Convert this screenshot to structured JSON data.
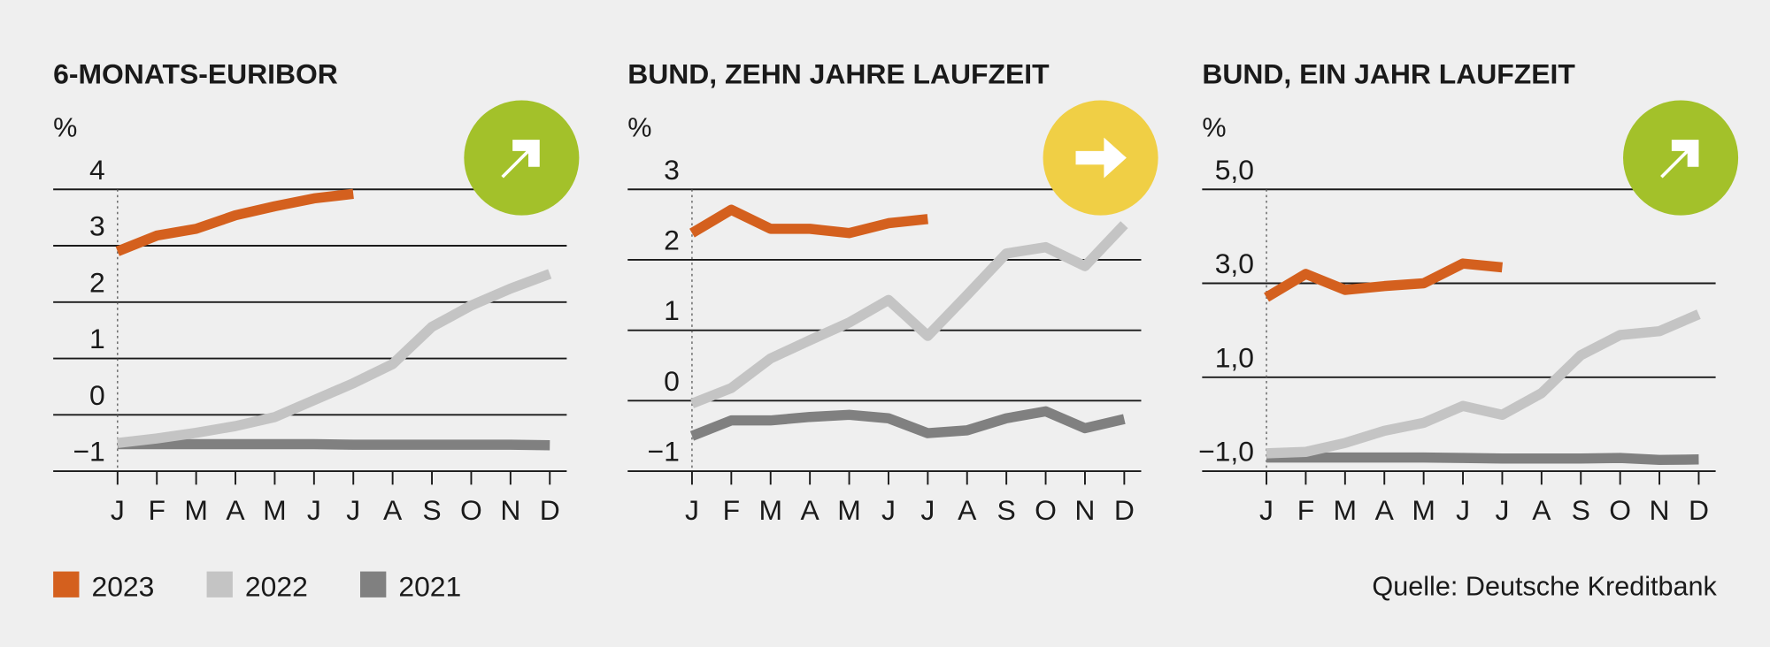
{
  "chart_data": [
    {
      "type": "line",
      "title": "6-MONATS-EURIBOR",
      "ylabel": "%",
      "categories": [
        "J",
        "F",
        "M",
        "A",
        "M",
        "J",
        "J",
        "A",
        "S",
        "O",
        "N",
        "D"
      ],
      "ylim": [
        -1,
        4
      ],
      "yticks": [
        {
          "value": -1,
          "label": "−1"
        },
        0,
        1,
        2,
        3,
        4
      ],
      "series": [
        {
          "name": "2021",
          "color": "#808080",
          "values": [
            -0.52,
            -0.52,
            -0.52,
            -0.52,
            -0.52,
            -0.52,
            -0.53,
            -0.53,
            -0.53,
            -0.53,
            -0.53,
            -0.54
          ]
        },
        {
          "name": "2022",
          "color": "#c4c4c4",
          "values": [
            -0.5,
            -0.42,
            -0.32,
            -0.2,
            -0.04,
            0.26,
            0.56,
            0.9,
            1.56,
            1.94,
            2.24,
            2.5
          ]
        },
        {
          "name": "2023",
          "color": "#d4601e",
          "values": [
            2.9,
            3.18,
            3.3,
            3.54,
            3.7,
            3.84,
            3.92,
            null,
            null,
            null,
            null,
            null
          ]
        }
      ]
    },
    {
      "type": "line",
      "title": "BUND, ZEHN JAHRE LAUFZEIT",
      "ylabel": "%",
      "categories": [
        "J",
        "F",
        "M",
        "A",
        "M",
        "J",
        "J",
        "A",
        "S",
        "O",
        "N",
        "D"
      ],
      "ylim": [
        -1,
        3
      ],
      "yticks": [
        {
          "value": -1,
          "label": "−1"
        },
        0,
        1,
        2,
        3
      ],
      "series": [
        {
          "name": "2021",
          "color": "#808080",
          "values": [
            -0.5,
            -0.28,
            -0.28,
            -0.23,
            -0.2,
            -0.25,
            -0.46,
            -0.42,
            -0.25,
            -0.15,
            -0.39,
            -0.26
          ]
        },
        {
          "name": "2022",
          "color": "#c4c4c4",
          "values": [
            -0.04,
            0.18,
            0.6,
            0.86,
            1.11,
            1.43,
            0.92,
            1.5,
            2.09,
            2.18,
            1.91,
            2.5
          ]
        },
        {
          "name": "2023",
          "color": "#d4601e",
          "values": [
            2.38,
            2.71,
            2.44,
            2.44,
            2.38,
            2.52,
            2.58,
            null,
            null,
            null,
            null,
            null
          ]
        }
      ]
    },
    {
      "type": "line",
      "title": "BUND, EIN JAHR LAUFZEIT",
      "ylabel": "%",
      "categories": [
        "J",
        "F",
        "M",
        "A",
        "M",
        "J",
        "J",
        "A",
        "S",
        "O",
        "N",
        "D"
      ],
      "ylim": [
        -1,
        5
      ],
      "yticks": [
        {
          "value": -1,
          "label": "−1,0"
        },
        {
          "value": 1,
          "label": "1,0"
        },
        {
          "value": 3,
          "label": "3,0"
        },
        {
          "value": 5,
          "label": "5,0"
        }
      ],
      "series": [
        {
          "name": "2021",
          "color": "#808080",
          "values": [
            -0.71,
            -0.71,
            -0.71,
            -0.71,
            -0.71,
            -0.72,
            -0.73,
            -0.73,
            -0.73,
            -0.72,
            -0.76,
            -0.75
          ]
        },
        {
          "name": "2022",
          "color": "#c4c4c4",
          "values": [
            -0.62,
            -0.59,
            -0.4,
            -0.14,
            0.03,
            0.39,
            0.2,
            0.66,
            1.47,
            1.9,
            1.98,
            2.34
          ]
        },
        {
          "name": "2023",
          "color": "#d4601e",
          "values": [
            2.7,
            3.2,
            2.86,
            2.94,
            3.0,
            3.42,
            3.34,
            null,
            null,
            null,
            null,
            null
          ]
        }
      ]
    }
  ],
  "source": "Quelle: Deutsche Kreditbank"
}
